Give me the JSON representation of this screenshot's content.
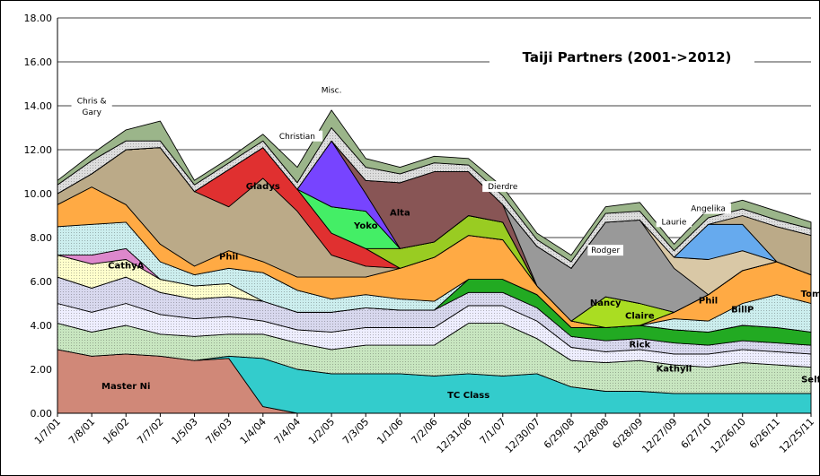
{
  "chart_data": {
    "type": "area",
    "stacked": true,
    "title": "Taiji Partners  (2001->2012)",
    "xlabel": "",
    "ylabel": "",
    "ylim": [
      0,
      18
    ],
    "yticks": [
      "0.00",
      "2.00",
      "4.00",
      "6.00",
      "8.00",
      "10.00",
      "12.00",
      "14.00",
      "16.00",
      "18.00"
    ],
    "grid": true,
    "x": [
      "1/7/01",
      "7/8/01",
      "1/6/02",
      "7/7/02",
      "1/5/03",
      "7/6/03",
      "1/4/04",
      "7/4/04",
      "1/2/05",
      "7/3/05",
      "1/1/06",
      "7/2/06",
      "12/31/06",
      "7/1/07",
      "12/30/07",
      "6/29/08",
      "12/28/08",
      "6/28/09",
      "12/27/09",
      "6/27/10",
      "12/26/10",
      "6/26/11",
      "12/25/11"
    ],
    "series": [
      {
        "name": "Master Ni",
        "color": "#d08878",
        "values": [
          2.9,
          2.6,
          2.7,
          2.6,
          2.4,
          2.5,
          0.3,
          0,
          0,
          0,
          0,
          0,
          0,
          0,
          0,
          0,
          0,
          0,
          0,
          0,
          0,
          0,
          0
        ]
      },
      {
        "name": "TC Class",
        "color": "#33cccc",
        "values": [
          0,
          0,
          0,
          0,
          0,
          0.1,
          2.2,
          2.0,
          1.8,
          1.8,
          1.8,
          1.7,
          1.8,
          1.7,
          1.8,
          1.2,
          1.0,
          1.0,
          0.9,
          0.9,
          0.9,
          0.9,
          0.9
        ]
      },
      {
        "name": "Self",
        "color": "#c8e6c0",
        "values": [
          1.2,
          1.1,
          1.3,
          1.0,
          1.1,
          1.0,
          1.1,
          1.2,
          1.1,
          1.3,
          1.3,
          1.4,
          2.3,
          2.4,
          1.6,
          1.2,
          1.3,
          1.4,
          1.3,
          1.2,
          1.4,
          1.3,
          1.2
        ]
      },
      {
        "name": "Kathyll",
        "color": "#eeeeff",
        "values": [
          0.9,
          0.9,
          1.0,
          0.9,
          0.8,
          0.8,
          0.6,
          0.6,
          0.8,
          0.8,
          0.8,
          0.8,
          0.8,
          0.8,
          0.8,
          0.6,
          0.5,
          0.5,
          0.5,
          0.6,
          0.6,
          0.6,
          0.6
        ]
      },
      {
        "name": "",
        "color": "#d8d8ee",
        "values": [
          1.2,
          1.1,
          1.2,
          1.0,
          0.9,
          0.9,
          0.9,
          0.8,
          0.9,
          0.9,
          0.8,
          0.8,
          0.6,
          0.6,
          0.6,
          0.5,
          0.5,
          0.5,
          0.5,
          0.4,
          0.4,
          0.4,
          0.4
        ]
      },
      {
        "name": "Rick",
        "color": "#22aa22",
        "values": [
          0,
          0,
          0,
          0,
          0,
          0,
          0,
          0,
          0,
          0,
          0,
          0,
          0.6,
          0.6,
          0.6,
          0.4,
          0.6,
          0.6,
          0.6,
          0.6,
          0.7,
          0.7,
          0.6
        ]
      },
      {
        "name": "CathyA",
        "color": "#ffffcc",
        "values": [
          1.0,
          1.1,
          0.8,
          0.6,
          0.6,
          0.6,
          0,
          0,
          0,
          0,
          0,
          0,
          0,
          0,
          0,
          0,
          0,
          0,
          0,
          0,
          0,
          0,
          0
        ]
      },
      {
        "name": "",
        "color": "#dd88cc",
        "values": [
          0,
          0.4,
          0.5,
          0,
          0,
          0,
          0,
          0,
          0,
          0,
          0,
          0,
          0,
          0,
          0,
          0,
          0,
          0,
          0,
          0,
          0,
          0,
          0
        ]
      },
      {
        "name": "",
        "color": "#cceeee",
        "values": [
          1.3,
          1.4,
          1.2,
          0.8,
          0.5,
          0.7,
          1.3,
          1.0,
          0.6,
          0.6,
          0.5,
          0.4,
          0,
          0,
          0,
          0,
          0,
          0,
          0.5,
          0.5,
          1.0,
          1.5,
          1.3
        ]
      },
      {
        "name": "",
        "color": "#ffaa44",
        "values": [
          1.0,
          1.7,
          0.8,
          0.8,
          0.4,
          0.8,
          0.5,
          0.6,
          1.0,
          0.8,
          1.4,
          2.0,
          2.0,
          1.8,
          0.4,
          0.3,
          0,
          0,
          0.3,
          1.2,
          1.5,
          1.5,
          1.3
        ]
      },
      {
        "name": "Phil",
        "color": "#bbaa88",
        "values": [
          0.5,
          0.6,
          2.5,
          4.4,
          3.4,
          2.0,
          3.8,
          3.0,
          1.0,
          0.5,
          0,
          0,
          0,
          0,
          0,
          0,
          0,
          0,
          0,
          0,
          0,
          0,
          0
        ]
      },
      {
        "name": "Gladys",
        "color": "#e03030",
        "values": [
          0,
          0,
          0,
          0,
          0,
          1.7,
          1.4,
          1.0,
          1.0,
          0.8,
          0,
          0,
          0,
          0,
          0,
          0,
          0,
          0,
          0,
          0,
          0,
          0,
          0
        ]
      },
      {
        "name": "",
        "color": "#99cc22",
        "values": [
          0,
          0,
          0,
          0,
          0,
          0,
          0,
          0,
          0,
          0,
          0.9,
          0.7,
          0.9,
          0.8,
          0,
          0,
          0,
          0,
          0,
          0,
          0,
          0,
          0
        ]
      },
      {
        "name": "Yoko",
        "color": "#44ee66",
        "values": [
          0,
          0,
          0,
          0,
          0,
          0,
          0,
          0,
          1.2,
          1.7,
          0,
          0,
          0,
          0,
          0,
          0,
          0,
          0,
          0,
          0,
          0,
          0,
          0
        ]
      },
      {
        "name": "Claire",
        "color": "#aadd22",
        "values": [
          0,
          0,
          0,
          0,
          0,
          0,
          0,
          0,
          0,
          0,
          0,
          0,
          0,
          0,
          0,
          0,
          1.4,
          1.0,
          0,
          0,
          0,
          0,
          0
        ]
      },
      {
        "name": "",
        "color": "#7744ff",
        "values": [
          0,
          0,
          0,
          0,
          0,
          0,
          0,
          0,
          3.0,
          0.8,
          0,
          0,
          0,
          0,
          0,
          0,
          0,
          0,
          0,
          0,
          0,
          0,
          0
        ]
      },
      {
        "name": "Alta",
        "color": "#885555",
        "values": [
          0,
          0,
          0,
          0,
          0,
          0,
          0,
          0,
          0,
          0.6,
          3.0,
          3.2,
          2.0,
          0.8,
          0,
          0,
          0,
          0,
          0,
          0,
          0,
          0,
          0
        ]
      },
      {
        "name": "Nancy",
        "color": "#999999",
        "values": [
          0,
          0,
          0,
          0,
          0,
          0,
          0,
          0,
          0,
          0,
          0,
          0,
          0,
          0,
          1.8,
          2.4,
          3.4,
          3.8,
          2.0,
          0,
          0,
          0,
          0
        ]
      },
      {
        "name": "Phil",
        "color": "#d9c8a6",
        "values": [
          0,
          0,
          0,
          0,
          0,
          0,
          0,
          0,
          0,
          0,
          0,
          0,
          0,
          0,
          0,
          0,
          0,
          0,
          0.5,
          1.6,
          0.9,
          0,
          0
        ]
      },
      {
        "name": "BillP",
        "color": "#66aaee",
        "values": [
          0,
          0,
          0,
          0,
          0,
          0,
          0,
          0,
          0,
          0,
          0,
          0,
          0,
          0,
          0,
          0,
          0,
          0,
          0,
          1.6,
          1.2,
          0,
          0
        ]
      },
      {
        "name": "Tom",
        "color": "#bbaa88",
        "values": [
          0,
          0,
          0,
          0,
          0,
          0,
          0,
          0,
          0,
          0,
          0,
          0,
          0,
          0,
          0,
          0,
          0,
          0,
          0,
          0,
          0.4,
          1.6,
          1.8
        ]
      },
      {
        "name": "",
        "color": "#dddddd",
        "values": [
          0.4,
          0.6,
          0.4,
          0.3,
          0.3,
          0.3,
          0.3,
          0.3,
          0.6,
          0.6,
          0.4,
          0.4,
          0.3,
          0.4,
          0.3,
          0.3,
          0.4,
          0.4,
          0.3,
          0.3,
          0.3,
          0.3,
          0.3
        ]
      },
      {
        "name": "",
        "color": "#9bb58a",
        "values": [
          0.2,
          0.3,
          0.5,
          0.9,
          0.2,
          0.2,
          0.3,
          0.7,
          0.8,
          0.4,
          0.3,
          0.3,
          0.3,
          0.4,
          0.3,
          0.3,
          0.3,
          0.4,
          0.3,
          0.4,
          0.4,
          0.4,
          0.3
        ]
      }
    ],
    "annotations": [
      {
        "text": "Chris &",
        "x": "7/8/01",
        "y": 14.1,
        "style": "plain"
      },
      {
        "text": "Gary",
        "x": "7/8/01",
        "y": 13.6,
        "style": "plain"
      },
      {
        "text": "Christian",
        "x": "7/4/04",
        "y": 12.5,
        "style": "plain"
      },
      {
        "text": "Misc.",
        "x": "1/2/05",
        "y": 14.6,
        "style": "plain"
      },
      {
        "text": "Gladys",
        "x": "1/4/04",
        "y": 10.2,
        "style": "bold"
      },
      {
        "text": "Dierdre",
        "x": "7/1/07",
        "y": 10.2,
        "style": "plain"
      },
      {
        "text": "Yoko",
        "x": "7/3/05",
        "y": 8.4,
        "style": "bold"
      },
      {
        "text": "Alta",
        "x": "1/1/06",
        "y": 9.0,
        "style": "bold"
      },
      {
        "text": "CathyA",
        "x": "1/6/02",
        "y": 6.6,
        "style": "bold"
      },
      {
        "text": "Phil",
        "x": "7/6/03",
        "y": 7.0,
        "style": "bold"
      },
      {
        "text": "Rodger",
        "x": "12/28/08",
        "y": 7.3,
        "style": "plain"
      },
      {
        "text": "Laurie",
        "x": "12/27/09",
        "y": 8.6,
        "style": "plain"
      },
      {
        "text": "Angelika",
        "x": "6/27/10",
        "y": 9.2,
        "style": "plain"
      },
      {
        "text": "Nancy",
        "x": "12/28/08",
        "y": 4.9,
        "style": "bold"
      },
      {
        "text": "Claire",
        "x": "6/28/09",
        "y": 4.3,
        "style": "bold"
      },
      {
        "text": "Phil",
        "x": "6/27/10",
        "y": 5.0,
        "style": "bold"
      },
      {
        "text": "BillP",
        "x": "12/26/10",
        "y": 4.6,
        "style": "bold"
      },
      {
        "text": "Tom",
        "x": "12/25/11",
        "y": 5.3,
        "style": "bold"
      },
      {
        "text": "Rick",
        "x": "6/28/09",
        "y": 3.0,
        "style": "bold"
      },
      {
        "text": "Kathyll",
        "x": "12/27/09",
        "y": 1.9,
        "style": "bold"
      },
      {
        "text": "Self",
        "x": "12/25/11",
        "y": 1.4,
        "style": "bold"
      },
      {
        "text": "Master Ni",
        "x": "1/6/02",
        "y": 1.1,
        "style": "bold"
      },
      {
        "text": "TC Class",
        "x": "12/31/06",
        "y": 0.7,
        "style": "bold"
      }
    ]
  }
}
